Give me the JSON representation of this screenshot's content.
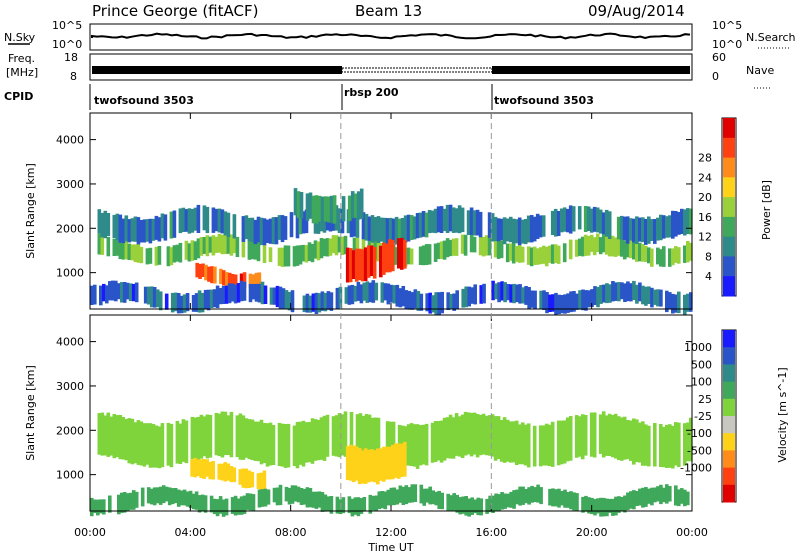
{
  "header": {
    "station": "Prince George (fitACF)",
    "beam": "Beam 13",
    "date": "09/Aug/2014"
  },
  "panels": {
    "nsky": {
      "left_label": "N.Sky",
      "top_tick": "10^5",
      "bottom_tick": "10^0",
      "right_label": "N.Search",
      "right_top_tick": "10^5",
      "right_bottom_tick": "10^0"
    },
    "freq": {
      "left_label_1": "Freq.",
      "left_label_2": "[MHz]",
      "top_tick": "18",
      "bottom_tick": "8",
      "right_label": "Nave",
      "right_top_tick": "60",
      "right_bottom_tick": "0"
    },
    "cpid": {
      "label": "CPID",
      "programs": [
        {
          "name": "twofsound 3503",
          "start_hour": 0
        },
        {
          "name": "rbsp 200",
          "start_hour": 10
        },
        {
          "name": "twofsound 3503",
          "start_hour": 16
        }
      ]
    }
  },
  "chart_data": [
    {
      "type": "heatmap",
      "name": "power",
      "xlabel": "",
      "ylabel": "Slant Range [km]",
      "xlim": [
        0,
        24
      ],
      "ylim": [
        180,
        4600
      ],
      "yticks": [
        "1000",
        "2000",
        "3000",
        "4000"
      ],
      "colorbar_label": "Power [dB]",
      "colorbar_ticks": [
        "4",
        "8",
        "12",
        "16",
        "20",
        "24",
        "28"
      ],
      "colorbar_colors": [
        "#1a1aff",
        "#2a55c8",
        "#2f8a8a",
        "#3fa85a",
        "#9ad13a",
        "#ffd21a",
        "#ff8c1a",
        "#ff4010",
        "#e00000"
      ],
      "regions": [
        {
          "t0": 0.3,
          "t1": 24,
          "r0": 1250,
          "r1": 1750,
          "value": 14
        },
        {
          "t0": 0.3,
          "t1": 24,
          "r0": 1750,
          "r1": 2400,
          "value": 8
        },
        {
          "t0": 4.2,
          "t1": 6.8,
          "r0": 750,
          "r1": 1150,
          "value": 26
        },
        {
          "t0": 10.2,
          "t1": 12.6,
          "r0": 900,
          "r1": 1700,
          "value": 28
        },
        {
          "t0": 8.0,
          "t1": 11.0,
          "r0": 2200,
          "r1": 2900,
          "value": 10
        },
        {
          "t0": 0,
          "t1": 24,
          "r0": 180,
          "r1": 700,
          "value": 6
        }
      ]
    },
    {
      "type": "heatmap",
      "name": "velocity",
      "xlabel": "Time UT",
      "ylabel": "Slant Range [km]",
      "xlim": [
        0,
        24
      ],
      "ylim": [
        180,
        4600
      ],
      "xticks": [
        "00:00",
        "04:00",
        "08:00",
        "12:00",
        "16:00",
        "20:00",
        "00:00"
      ],
      "yticks": [
        "1000",
        "2000",
        "3000",
        "4000"
      ],
      "colorbar_label": "Velocity [m s^-1]",
      "colorbar_ticks": [
        "1000",
        "500",
        "100",
        "25",
        "-25",
        "-100",
        "-500",
        "-1000"
      ],
      "colorbar_colors": [
        "#1a1aff",
        "#2a55c8",
        "#2f8a8a",
        "#3fa85a",
        "#7ed43a",
        "#c8c8c0",
        "#ffd21a",
        "#ff8c1a",
        "#ff4010",
        "#e00000"
      ],
      "regions": [
        {
          "t0": 0.3,
          "t1": 24,
          "r0": 1250,
          "r1": 2300,
          "value": 0
        },
        {
          "t0": 4.0,
          "t1": 7.0,
          "r0": 750,
          "r1": 1250,
          "value": -150
        },
        {
          "t0": 10.2,
          "t1": 12.6,
          "r0": 900,
          "r1": 1750,
          "value": -180
        },
        {
          "t0": 0,
          "t1": 24,
          "r0": 180,
          "r1": 650,
          "value": 60
        }
      ]
    }
  ]
}
